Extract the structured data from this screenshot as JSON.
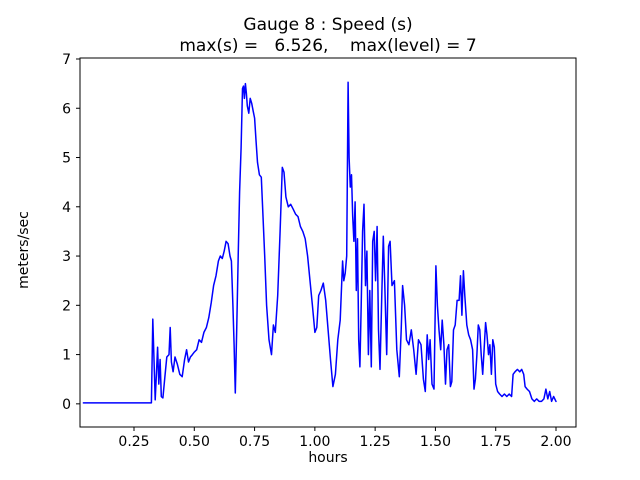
{
  "window": {
    "background": "#ffffff"
  },
  "chart_data": {
    "type": "line",
    "title": "Gauge 8 : Speed (s)",
    "subtitle": "max(s) =   6.526,    max(level) = 7",
    "xlabel": "hours",
    "ylabel": "meters/sec",
    "max_s": 6.526,
    "max_level": 7,
    "xlim": [
      0.026,
      2.083
    ],
    "ylim": [
      -0.47,
      7.02
    ],
    "xticks": [
      0.25,
      0.5,
      0.75,
      1.0,
      1.25,
      1.5,
      1.75,
      2.0
    ],
    "xtick_labels": [
      "0.25",
      "0.50",
      "0.75",
      "1.00",
      "1.25",
      "1.50",
      "1.75",
      "2.00"
    ],
    "yticks": [
      0,
      1,
      2,
      3,
      4,
      5,
      6,
      7
    ],
    "ytick_labels": [
      "0",
      "1",
      "2",
      "3",
      "4",
      "5",
      "6",
      "7"
    ],
    "grid": false,
    "legend": "none",
    "line_color": "#0000ff",
    "axes_color": "#000000",
    "series": [
      {
        "name": "speed",
        "points": [
          [
            0.04,
            0.02
          ],
          [
            0.12,
            0.02
          ],
          [
            0.2,
            0.02
          ],
          [
            0.28,
            0.02
          ],
          [
            0.322,
            0.02
          ],
          [
            0.328,
            1.72
          ],
          [
            0.333,
            0.9
          ],
          [
            0.338,
            0.08
          ],
          [
            0.343,
            0.6
          ],
          [
            0.348,
            1.15
          ],
          [
            0.353,
            0.4
          ],
          [
            0.358,
            0.9
          ],
          [
            0.363,
            0.15
          ],
          [
            0.37,
            0.12
          ],
          [
            0.378,
            0.55
          ],
          [
            0.386,
            0.95
          ],
          [
            0.395,
            1.0
          ],
          [
            0.4,
            1.55
          ],
          [
            0.405,
            0.85
          ],
          [
            0.412,
            0.65
          ],
          [
            0.42,
            0.95
          ],
          [
            0.43,
            0.8
          ],
          [
            0.44,
            0.6
          ],
          [
            0.45,
            0.55
          ],
          [
            0.46,
            0.9
          ],
          [
            0.468,
            1.1
          ],
          [
            0.476,
            0.85
          ],
          [
            0.484,
            0.95
          ],
          [
            0.492,
            1.0
          ],
          [
            0.5,
            1.05
          ],
          [
            0.51,
            1.1
          ],
          [
            0.52,
            1.3
          ],
          [
            0.53,
            1.25
          ],
          [
            0.54,
            1.45
          ],
          [
            0.55,
            1.55
          ],
          [
            0.56,
            1.75
          ],
          [
            0.57,
            2.05
          ],
          [
            0.58,
            2.4
          ],
          [
            0.59,
            2.6
          ],
          [
            0.6,
            2.9
          ],
          [
            0.608,
            3.0
          ],
          [
            0.616,
            2.95
          ],
          [
            0.624,
            3.1
          ],
          [
            0.632,
            3.3
          ],
          [
            0.64,
            3.25
          ],
          [
            0.648,
            3.0
          ],
          [
            0.654,
            2.9
          ],
          [
            0.66,
            2.0
          ],
          [
            0.665,
            1.2
          ],
          [
            0.67,
            0.22
          ],
          [
            0.676,
            1.5
          ],
          [
            0.682,
            3.0
          ],
          [
            0.688,
            4.3
          ],
          [
            0.694,
            5.2
          ],
          [
            0.7,
            6.4
          ],
          [
            0.704,
            6.45
          ],
          [
            0.708,
            6.2
          ],
          [
            0.712,
            6.5
          ],
          [
            0.716,
            6.3
          ],
          [
            0.72,
            6.05
          ],
          [
            0.726,
            5.9
          ],
          [
            0.732,
            6.2
          ],
          [
            0.738,
            6.1
          ],
          [
            0.744,
            5.95
          ],
          [
            0.75,
            5.8
          ],
          [
            0.756,
            5.35
          ],
          [
            0.762,
            4.9
          ],
          [
            0.77,
            4.65
          ],
          [
            0.778,
            4.6
          ],
          [
            0.784,
            3.9
          ],
          [
            0.792,
            3.0
          ],
          [
            0.8,
            2.0
          ],
          [
            0.81,
            1.3
          ],
          [
            0.82,
            1.0
          ],
          [
            0.828,
            1.6
          ],
          [
            0.836,
            1.45
          ],
          [
            0.846,
            2.2
          ],
          [
            0.856,
            3.5
          ],
          [
            0.865,
            4.8
          ],
          [
            0.872,
            4.7
          ],
          [
            0.88,
            4.2
          ],
          [
            0.89,
            4.0
          ],
          [
            0.9,
            4.05
          ],
          [
            0.91,
            3.95
          ],
          [
            0.92,
            3.85
          ],
          [
            0.93,
            3.8
          ],
          [
            0.94,
            3.6
          ],
          [
            0.95,
            3.5
          ],
          [
            0.96,
            3.35
          ],
          [
            0.97,
            3.0
          ],
          [
            0.98,
            2.5
          ],
          [
            0.99,
            2.0
          ],
          [
            1.0,
            1.45
          ],
          [
            1.008,
            1.55
          ],
          [
            1.016,
            2.2
          ],
          [
            1.025,
            2.3
          ],
          [
            1.035,
            2.45
          ],
          [
            1.045,
            2.1
          ],
          [
            1.055,
            1.5
          ],
          [
            1.065,
            0.9
          ],
          [
            1.075,
            0.35
          ],
          [
            1.085,
            0.6
          ],
          [
            1.095,
            1.3
          ],
          [
            1.105,
            1.7
          ],
          [
            1.115,
            2.9
          ],
          [
            1.12,
            2.5
          ],
          [
            1.126,
            2.65
          ],
          [
            1.132,
            3.0
          ],
          [
            1.138,
            6.526
          ],
          [
            1.142,
            5.0
          ],
          [
            1.147,
            4.4
          ],
          [
            1.152,
            4.65
          ],
          [
            1.157,
            3.8
          ],
          [
            1.162,
            3.3
          ],
          [
            1.167,
            4.1
          ],
          [
            1.172,
            2.3
          ],
          [
            1.177,
            3.35
          ],
          [
            1.182,
            1.3
          ],
          [
            1.187,
            0.75
          ],
          [
            1.192,
            2.0
          ],
          [
            1.198,
            3.5
          ],
          [
            1.204,
            4.05
          ],
          [
            1.21,
            2.4
          ],
          [
            1.216,
            3.1
          ],
          [
            1.222,
            1.0
          ],
          [
            1.228,
            2.3
          ],
          [
            1.234,
            0.75
          ],
          [
            1.24,
            3.3
          ],
          [
            1.246,
            3.5
          ],
          [
            1.252,
            2.5
          ],
          [
            1.258,
            3.6
          ],
          [
            1.264,
            1.5
          ],
          [
            1.27,
            0.7
          ],
          [
            1.278,
            2.3
          ],
          [
            1.284,
            3.4
          ],
          [
            1.29,
            2.4
          ],
          [
            1.298,
            1.0
          ],
          [
            1.306,
            3.2
          ],
          [
            1.312,
            3.3
          ],
          [
            1.32,
            2.4
          ],
          [
            1.33,
            2.5
          ],
          [
            1.34,
            1.1
          ],
          [
            1.35,
            0.55
          ],
          [
            1.358,
            1.5
          ],
          [
            1.364,
            2.4
          ],
          [
            1.372,
            2.0
          ],
          [
            1.38,
            1.3
          ],
          [
            1.39,
            1.2
          ],
          [
            1.4,
            1.5
          ],
          [
            1.41,
            1.1
          ],
          [
            1.42,
            0.6
          ],
          [
            1.43,
            1.3
          ],
          [
            1.44,
            1.2
          ],
          [
            1.45,
            0.5
          ],
          [
            1.458,
            0.25
          ],
          [
            1.466,
            1.4
          ],
          [
            1.472,
            0.9
          ],
          [
            1.478,
            1.3
          ],
          [
            1.486,
            0.4
          ],
          [
            1.494,
            0.3
          ],
          [
            1.502,
            2.8
          ],
          [
            1.508,
            2.0
          ],
          [
            1.515,
            1.5
          ],
          [
            1.522,
            1.1
          ],
          [
            1.528,
            1.7
          ],
          [
            1.535,
            1.2
          ],
          [
            1.542,
            0.4
          ],
          [
            1.548,
            1.1
          ],
          [
            1.555,
            1.2
          ],
          [
            1.562,
            0.35
          ],
          [
            1.568,
            0.45
          ],
          [
            1.575,
            1.5
          ],
          [
            1.582,
            1.6
          ],
          [
            1.59,
            2.1
          ],
          [
            1.598,
            2.1
          ],
          [
            1.604,
            2.6
          ],
          [
            1.61,
            1.8
          ],
          [
            1.616,
            2.7
          ],
          [
            1.622,
            2.2
          ],
          [
            1.63,
            1.6
          ],
          [
            1.638,
            1.4
          ],
          [
            1.646,
            1.3
          ],
          [
            1.654,
            1.1
          ],
          [
            1.66,
            0.3
          ],
          [
            1.666,
            0.5
          ],
          [
            1.672,
            1.0
          ],
          [
            1.678,
            1.6
          ],
          [
            1.684,
            1.5
          ],
          [
            1.69,
            1.0
          ],
          [
            1.696,
            0.6
          ],
          [
            1.702,
            1.1
          ],
          [
            1.708,
            1.65
          ],
          [
            1.714,
            1.4
          ],
          [
            1.72,
            1.0
          ],
          [
            1.726,
            1.2
          ],
          [
            1.732,
            0.6
          ],
          [
            1.738,
            1.3
          ],
          [
            1.744,
            1.15
          ],
          [
            1.75,
            0.4
          ],
          [
            1.758,
            0.25
          ],
          [
            1.766,
            0.2
          ],
          [
            1.776,
            0.15
          ],
          [
            1.786,
            0.2
          ],
          [
            1.796,
            0.15
          ],
          [
            1.806,
            0.2
          ],
          [
            1.816,
            0.15
          ],
          [
            1.822,
            0.6
          ],
          [
            1.83,
            0.65
          ],
          [
            1.84,
            0.7
          ],
          [
            1.85,
            0.65
          ],
          [
            1.858,
            0.7
          ],
          [
            1.866,
            0.6
          ],
          [
            1.872,
            0.35
          ],
          [
            1.88,
            0.3
          ],
          [
            1.89,
            0.25
          ],
          [
            1.9,
            0.1
          ],
          [
            1.91,
            0.05
          ],
          [
            1.92,
            0.1
          ],
          [
            1.93,
            0.05
          ],
          [
            1.94,
            0.05
          ],
          [
            1.95,
            0.1
          ],
          [
            1.958,
            0.3
          ],
          [
            1.966,
            0.1
          ],
          [
            1.974,
            0.25
          ],
          [
            1.982,
            0.05
          ],
          [
            1.99,
            0.15
          ],
          [
            2.0,
            0.05
          ]
        ]
      }
    ]
  }
}
